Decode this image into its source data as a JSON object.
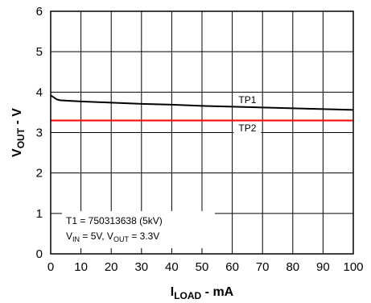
{
  "chart_data": {
    "type": "line",
    "title": "",
    "xlabel": {
      "main": "I",
      "sub": "LOAD",
      "rest": " - mA"
    },
    "ylabel": {
      "main": "V",
      "sub": "OUT",
      "rest": " - V"
    },
    "xlim": [
      0,
      100
    ],
    "ylim": [
      0,
      6
    ],
    "xticks": [
      0,
      10,
      20,
      30,
      40,
      50,
      60,
      70,
      80,
      90,
      100
    ],
    "yticks": [
      0,
      1,
      2,
      3,
      4,
      5,
      6
    ],
    "grid": true,
    "series": [
      {
        "name": "TP1",
        "color": "#000000",
        "x": [
          0,
          1,
          2,
          3,
          5,
          10,
          20,
          30,
          40,
          50,
          60,
          70,
          80,
          90,
          100
        ],
        "y": [
          3.92,
          3.87,
          3.82,
          3.8,
          3.79,
          3.77,
          3.74,
          3.71,
          3.69,
          3.66,
          3.64,
          3.62,
          3.6,
          3.58,
          3.56
        ]
      },
      {
        "name": "TP2",
        "color": "#ff0000",
        "x": [
          0,
          100
        ],
        "y": [
          3.3,
          3.3
        ]
      }
    ],
    "annotations": {
      "line1": "T1 = 750313638 (5kV)",
      "line2": [
        {
          "text": "V",
          "sub": false
        },
        {
          "text": "IN",
          "sub": true
        },
        {
          "text": " = 5V, V",
          "sub": false
        },
        {
          "text": "OUT",
          "sub": true
        },
        {
          "text": " = 3.3V",
          "sub": false
        }
      ]
    }
  }
}
